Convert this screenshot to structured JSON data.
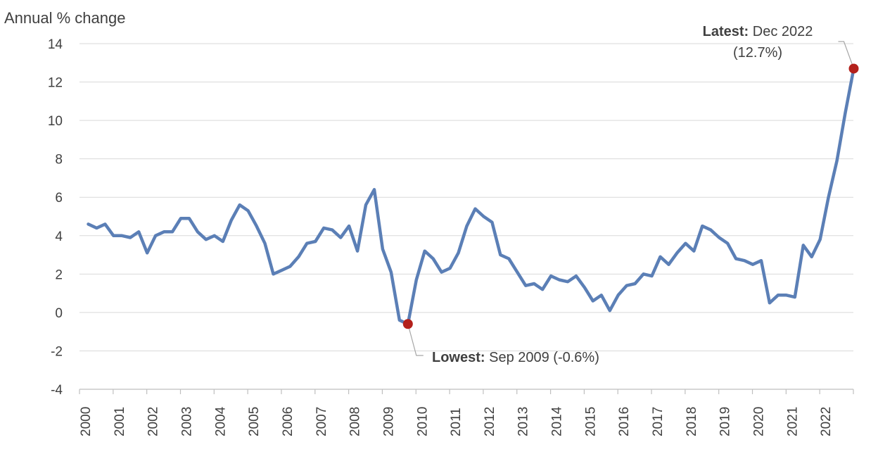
{
  "chart_data": {
    "type": "line",
    "ylabel": "Annual % change",
    "xlabel": "",
    "ylim": [
      -4,
      14
    ],
    "yticks": [
      "14",
      "12",
      "10",
      "8",
      "6",
      "4",
      "2",
      "0",
      "-2",
      "-4"
    ],
    "xticks": [
      "2000",
      "2001",
      "2002",
      "2003",
      "2004",
      "2005",
      "2006",
      "2007",
      "2008",
      "2009",
      "2010",
      "2011",
      "2012",
      "2013",
      "2014",
      "2015",
      "2016",
      "2017",
      "2018",
      "2019",
      "2020",
      "2021",
      "2022"
    ],
    "grid": "horizontal",
    "x_start": "Mar 2000",
    "x_step": "quarter",
    "series": [
      {
        "color": "#5b7fb6",
        "values": [
          4.6,
          4.4,
          4.6,
          4.0,
          4.0,
          3.9,
          4.2,
          3.1,
          4.0,
          4.2,
          4.2,
          4.9,
          4.9,
          4.2,
          3.8,
          4.0,
          3.7,
          4.8,
          5.6,
          5.3,
          4.5,
          3.6,
          2.0,
          2.2,
          2.4,
          2.9,
          3.6,
          3.7,
          4.4,
          4.3,
          3.9,
          4.5,
          3.2,
          5.6,
          6.4,
          3.3,
          2.1,
          -0.4,
          -0.6,
          1.7,
          3.2,
          2.8,
          2.1,
          2.3,
          3.1,
          4.5,
          5.4,
          5.0,
          4.7,
          3.0,
          2.8,
          2.1,
          1.4,
          1.5,
          1.2,
          1.9,
          1.7,
          1.6,
          1.9,
          1.3,
          0.6,
          0.9,
          0.1,
          0.9,
          1.4,
          1.5,
          2.0,
          1.9,
          2.9,
          2.5,
          3.1,
          3.6,
          3.2,
          4.5,
          4.3,
          3.9,
          3.6,
          2.8,
          2.7,
          2.5,
          2.7,
          0.5,
          0.9,
          0.9,
          0.8,
          3.5,
          2.9,
          3.8,
          6.0,
          7.9,
          10.4,
          12.7
        ]
      }
    ],
    "annotations": [
      {
        "name": "latest",
        "label_bold": "Latest:",
        "label_rest": " Dec 2022",
        "line2": "(12.7%)",
        "point_index": 91,
        "value": 12.7,
        "marker_color": "#b3201b"
      },
      {
        "name": "lowest",
        "label_bold": "Lowest:",
        "label_rest": " Sep 2009 (-0.6%)",
        "point_index": 38,
        "value": -0.6,
        "marker_color": "#b3201b"
      }
    ]
  }
}
